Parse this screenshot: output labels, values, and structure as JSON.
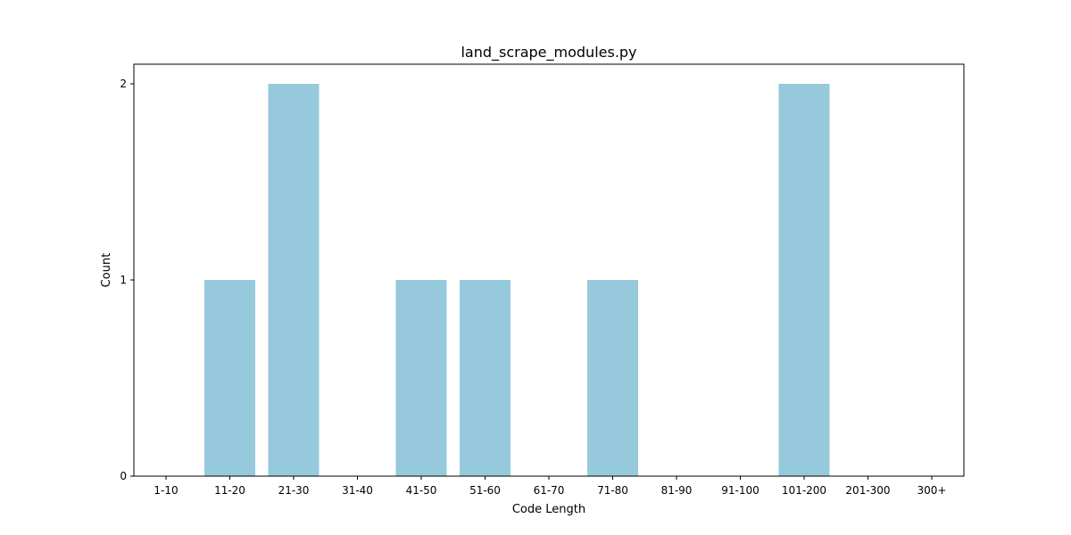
{
  "chart_data": {
    "type": "bar",
    "title": "land_scrape_modules.py",
    "xlabel": "Code Length",
    "ylabel": "Count",
    "categories": [
      "1-10",
      "11-20",
      "21-30",
      "31-40",
      "41-50",
      "51-60",
      "61-70",
      "71-80",
      "81-90",
      "91-100",
      "101-200",
      "201-300",
      "300+"
    ],
    "values": [
      0,
      1,
      2,
      0,
      1,
      1,
      0,
      1,
      0,
      0,
      2,
      0,
      0
    ],
    "ylim": [
      0,
      2.1
    ],
    "yticks": [
      "0",
      "1",
      "2"
    ],
    "bar_color": "#96c9dc",
    "grid": false,
    "legend": "none"
  }
}
